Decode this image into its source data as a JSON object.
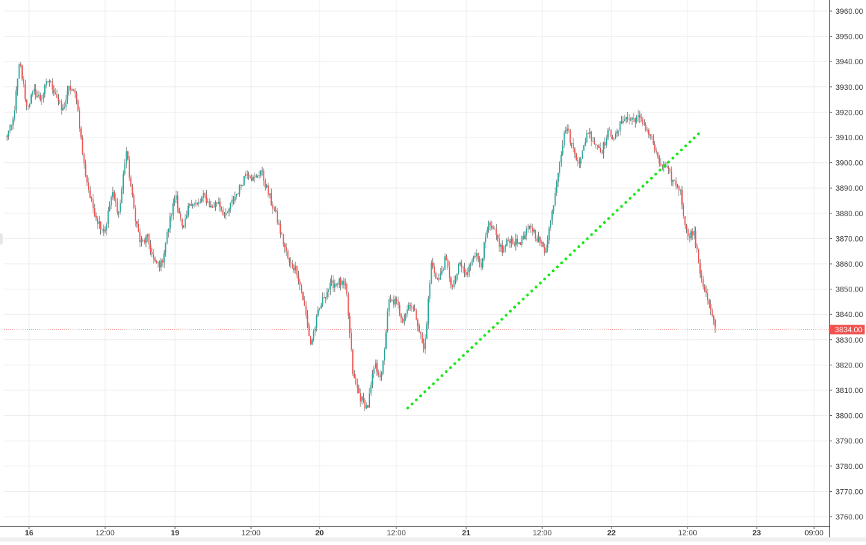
{
  "colors": {
    "background": "#ffffff",
    "grid": "#ececec",
    "up": "#26a69a",
    "down": "#ef5350",
    "wick": "#555555",
    "last_price": "#ef5350",
    "trendline": "#1be81b",
    "axis_text": "#333333"
  },
  "chart_data": {
    "type": "candlestick",
    "title": "",
    "xlabel": "",
    "ylabel": "",
    "ylim": [
      3755,
      3965
    ],
    "grid": true,
    "y_ticks": [
      "3960.00",
      "3950.00",
      "3940.00",
      "3930.00",
      "3920.00",
      "3910.00",
      "3900.00",
      "3890.00",
      "3880.00",
      "3870.00",
      "3860.00",
      "3850.00",
      "3840.00",
      "3830.00",
      "3820.00",
      "3810.00",
      "3800.00",
      "3790.00",
      "3780.00",
      "3770.00",
      "3760.00"
    ],
    "x_ticks": [
      {
        "label": "16",
        "bold": true
      },
      {
        "label": "12:00",
        "bold": false
      },
      {
        "label": "19",
        "bold": true
      },
      {
        "label": "12:00",
        "bold": false
      },
      {
        "label": "20",
        "bold": true
      },
      {
        "label": "12:00",
        "bold": false
      },
      {
        "label": "21",
        "bold": true
      },
      {
        "label": "12:00",
        "bold": false
      },
      {
        "label": "22",
        "bold": true
      },
      {
        "label": "12:00",
        "bold": false
      },
      {
        "label": "23",
        "bold": true
      },
      {
        "label": "09:00",
        "bold": false
      }
    ],
    "last_price": {
      "value": 3834,
      "label": "3834.00"
    },
    "price_path": [
      3910,
      3915,
      3940,
      3922,
      3928,
      3925,
      3933,
      3928,
      3920,
      3930,
      3926,
      3900,
      3885,
      3877,
      3873,
      3888,
      3880,
      3905,
      3883,
      3868,
      3870,
      3860,
      3860,
      3875,
      3888,
      3872,
      3885,
      3883,
      3887,
      3882,
      3885,
      3878,
      3885,
      3890,
      3897,
      3893,
      3897,
      3888,
      3880,
      3870,
      3860,
      3858,
      3845,
      3828,
      3840,
      3848,
      3852,
      3853,
      3850,
      3815,
      3807,
      3803,
      3820,
      3815,
      3845,
      3845,
      3838,
      3845,
      3838,
      3825,
      3860,
      3853,
      3862,
      3850,
      3860,
      3855,
      3865,
      3860,
      3875,
      3872,
      3865,
      3870,
      3868,
      3870,
      3875,
      3870,
      3865,
      3880,
      3900,
      3915,
      3905,
      3900,
      3913,
      3908,
      3905,
      3912,
      3910,
      3918,
      3917,
      3918,
      3915,
      3910,
      3900,
      3898,
      3893,
      3890,
      3872,
      3872,
      3855,
      3845,
      3834
    ],
    "trendline": {
      "start": {
        "day": "20",
        "time": "14:30",
        "price": 3803
      },
      "end": {
        "day": "22",
        "time": "15:00",
        "price": 3913
      }
    }
  }
}
